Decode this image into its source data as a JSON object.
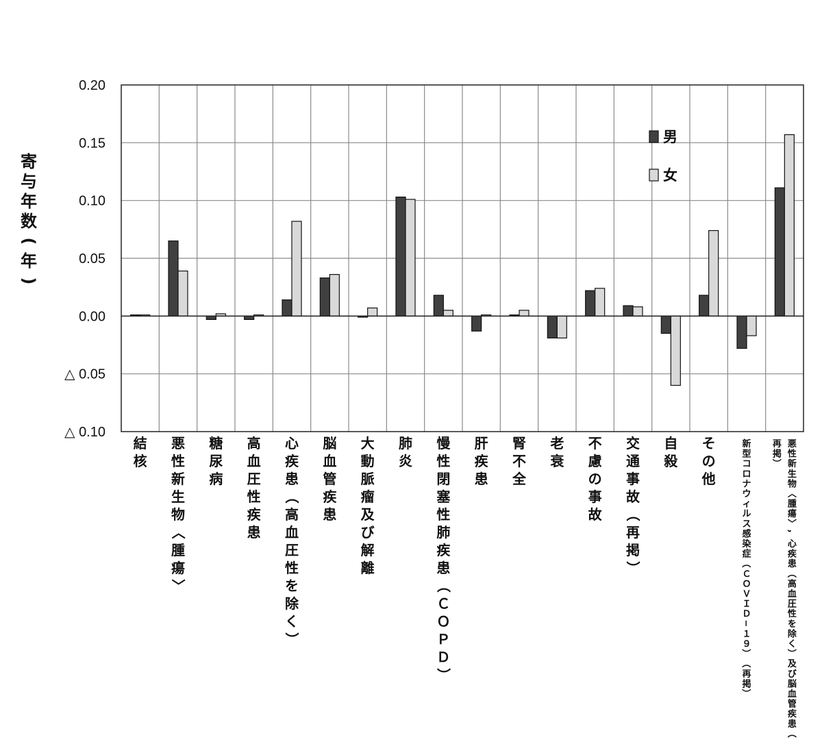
{
  "chart_data": {
    "type": "bar",
    "ylabel": "寄与年数(年)",
    "ylim": [
      -0.1,
      0.2
    ],
    "yticks": [
      {
        "value": 0.2,
        "label": "0.20"
      },
      {
        "value": 0.15,
        "label": "0.15"
      },
      {
        "value": 0.1,
        "label": "0.10"
      },
      {
        "value": 0.05,
        "label": "0.05"
      },
      {
        "value": 0.0,
        "label": "0.00"
      },
      {
        "value": -0.05,
        "label": "△ 0.05"
      },
      {
        "value": -0.1,
        "label": "△ 0.10"
      }
    ],
    "grid": true,
    "legend_position": "top-right",
    "categories": [
      "結核",
      "悪性新生物〈腫瘍〉",
      "糖尿病",
      "高血圧性疾患",
      "心疾患（高血圧性を除く）",
      "脳血管疾患",
      "大動脈瘤及び解離",
      "肺炎",
      "慢性閉塞性肺疾患（ＣＯＰＤ）",
      "肝疾患",
      "腎不全",
      "老衰",
      "不慮の事故",
      "交通事故（再掲）",
      "自殺",
      "その他",
      "新型コロナウィルス感染症（ＣＯＶＩＤ−１９）（再掲）",
      "悪性新生物〈腫瘍〉，心疾患（高血圧性を除く）及び脳血管疾患（再掲）"
    ],
    "series": [
      {
        "name": "男",
        "color": "#404040",
        "values": [
          0.001,
          0.065,
          -0.003,
          -0.003,
          0.014,
          0.033,
          -0.001,
          0.103,
          0.018,
          -0.013,
          0.001,
          -0.019,
          0.022,
          0.009,
          -0.015,
          0.018,
          -0.028,
          0.111
        ]
      },
      {
        "name": "女",
        "color": "#d9d9d9",
        "values": [
          0.001,
          0.039,
          0.002,
          0.001,
          0.082,
          0.036,
          0.007,
          0.101,
          0.005,
          0.001,
          0.005,
          -0.019,
          0.024,
          0.008,
          -0.06,
          0.074,
          -0.017,
          0.157
        ]
      }
    ]
  }
}
